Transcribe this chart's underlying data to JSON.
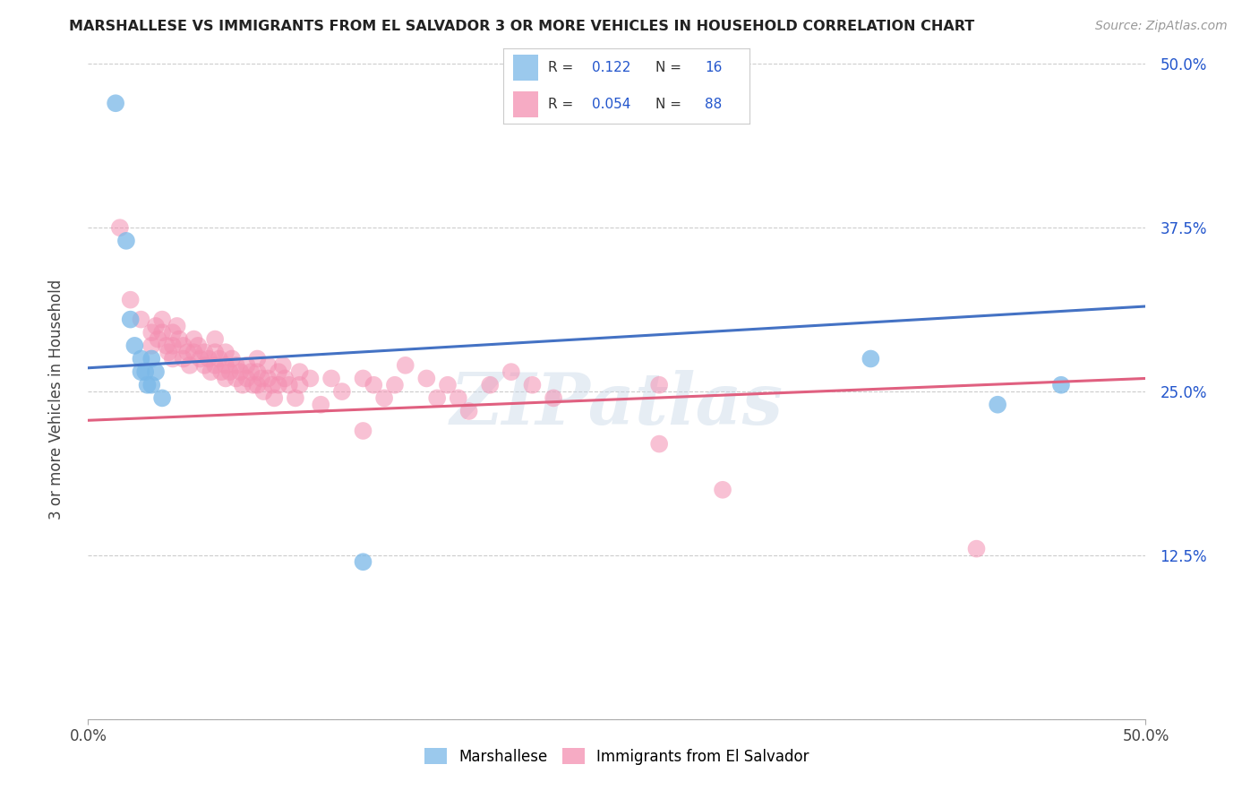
{
  "title": "MARSHALLESE VS IMMIGRANTS FROM EL SALVADOR 3 OR MORE VEHICLES IN HOUSEHOLD CORRELATION CHART",
  "source": "Source: ZipAtlas.com",
  "ylabel": "3 or more Vehicles in Household",
  "x_min": 0.0,
  "x_max": 0.5,
  "y_min": 0.0,
  "y_max": 0.5,
  "y_ticks": [
    0.0,
    0.125,
    0.25,
    0.375,
    0.5
  ],
  "y_tick_labels": [
    "",
    "12.5%",
    "25.0%",
    "37.5%",
    "50.0%"
  ],
  "marshallese_color": "#7ab8e8",
  "salvadoran_color": "#f48fb1",
  "trend_blue": "#4472c4",
  "trend_pink": "#e06080",
  "bg_color": "#ffffff",
  "grid_color": "#cccccc",
  "marshallese_scatter": [
    [
      0.013,
      0.47
    ],
    [
      0.018,
      0.365
    ],
    [
      0.02,
      0.305
    ],
    [
      0.022,
      0.285
    ],
    [
      0.025,
      0.275
    ],
    [
      0.025,
      0.265
    ],
    [
      0.027,
      0.265
    ],
    [
      0.028,
      0.255
    ],
    [
      0.03,
      0.275
    ],
    [
      0.03,
      0.255
    ],
    [
      0.032,
      0.265
    ],
    [
      0.035,
      0.245
    ],
    [
      0.13,
      0.12
    ],
    [
      0.37,
      0.275
    ],
    [
      0.43,
      0.24
    ],
    [
      0.46,
      0.255
    ]
  ],
  "salvadoran_scatter": [
    [
      0.015,
      0.375
    ],
    [
      0.02,
      0.32
    ],
    [
      0.025,
      0.305
    ],
    [
      0.03,
      0.295
    ],
    [
      0.03,
      0.285
    ],
    [
      0.032,
      0.3
    ],
    [
      0.033,
      0.29
    ],
    [
      0.035,
      0.305
    ],
    [
      0.035,
      0.295
    ],
    [
      0.037,
      0.285
    ],
    [
      0.038,
      0.28
    ],
    [
      0.04,
      0.295
    ],
    [
      0.04,
      0.285
    ],
    [
      0.04,
      0.275
    ],
    [
      0.042,
      0.3
    ],
    [
      0.043,
      0.29
    ],
    [
      0.045,
      0.285
    ],
    [
      0.045,
      0.275
    ],
    [
      0.047,
      0.28
    ],
    [
      0.048,
      0.27
    ],
    [
      0.05,
      0.29
    ],
    [
      0.05,
      0.28
    ],
    [
      0.052,
      0.285
    ],
    [
      0.053,
      0.275
    ],
    [
      0.055,
      0.28
    ],
    [
      0.055,
      0.27
    ],
    [
      0.057,
      0.275
    ],
    [
      0.058,
      0.265
    ],
    [
      0.06,
      0.29
    ],
    [
      0.06,
      0.28
    ],
    [
      0.06,
      0.27
    ],
    [
      0.062,
      0.275
    ],
    [
      0.063,
      0.265
    ],
    [
      0.065,
      0.28
    ],
    [
      0.065,
      0.27
    ],
    [
      0.065,
      0.26
    ],
    [
      0.067,
      0.265
    ],
    [
      0.068,
      0.275
    ],
    [
      0.07,
      0.27
    ],
    [
      0.07,
      0.26
    ],
    [
      0.072,
      0.265
    ],
    [
      0.073,
      0.255
    ],
    [
      0.075,
      0.27
    ],
    [
      0.075,
      0.26
    ],
    [
      0.077,
      0.265
    ],
    [
      0.078,
      0.255
    ],
    [
      0.08,
      0.275
    ],
    [
      0.08,
      0.265
    ],
    [
      0.08,
      0.255
    ],
    [
      0.082,
      0.26
    ],
    [
      0.083,
      0.25
    ],
    [
      0.085,
      0.27
    ],
    [
      0.085,
      0.26
    ],
    [
      0.087,
      0.255
    ],
    [
      0.088,
      0.245
    ],
    [
      0.09,
      0.265
    ],
    [
      0.09,
      0.255
    ],
    [
      0.092,
      0.27
    ],
    [
      0.093,
      0.26
    ],
    [
      0.095,
      0.255
    ],
    [
      0.098,
      0.245
    ],
    [
      0.1,
      0.265
    ],
    [
      0.1,
      0.255
    ],
    [
      0.105,
      0.26
    ],
    [
      0.11,
      0.24
    ],
    [
      0.115,
      0.26
    ],
    [
      0.12,
      0.25
    ],
    [
      0.13,
      0.26
    ],
    [
      0.13,
      0.22
    ],
    [
      0.135,
      0.255
    ],
    [
      0.14,
      0.245
    ],
    [
      0.145,
      0.255
    ],
    [
      0.15,
      0.27
    ],
    [
      0.16,
      0.26
    ],
    [
      0.165,
      0.245
    ],
    [
      0.17,
      0.255
    ],
    [
      0.175,
      0.245
    ],
    [
      0.18,
      0.235
    ],
    [
      0.19,
      0.255
    ],
    [
      0.2,
      0.265
    ],
    [
      0.21,
      0.255
    ],
    [
      0.22,
      0.245
    ],
    [
      0.27,
      0.255
    ],
    [
      0.27,
      0.21
    ],
    [
      0.3,
      0.175
    ],
    [
      0.42,
      0.13
    ]
  ],
  "watermark": "ZIPatlas"
}
